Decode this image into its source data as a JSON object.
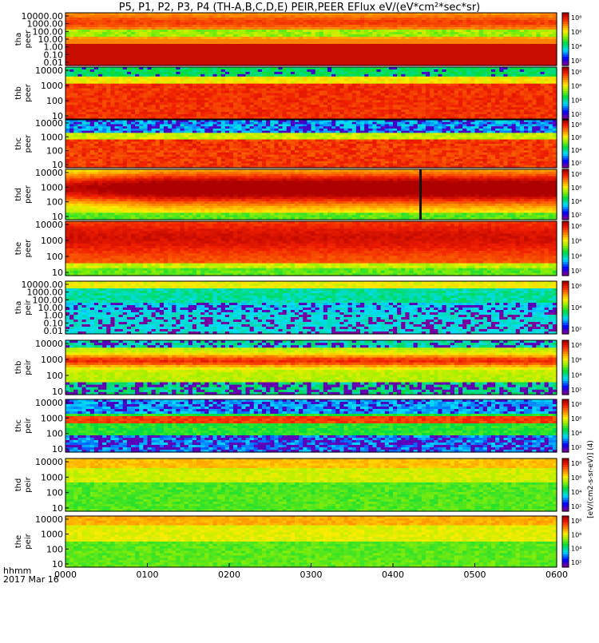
{
  "title": "P5, P1, P2, P3, P4 (TH-A,B,C,D,E) PEIR,PEER EFlux eV/(eV*cm²*sec*sr)",
  "footer": {
    "time_label": "hhmm",
    "date_label": "2017 Mar 16"
  },
  "chart_data": {
    "type": "heatmap",
    "x_axis": {
      "ticks": [
        "0000",
        "0100",
        "0200",
        "0300",
        "0400",
        "0500",
        "0600"
      ]
    },
    "colorbar_label": "[eV/(cm2-s-sr-eV)] (4)",
    "panels": [
      {
        "ylabel": [
          "tha",
          "peer"
        ],
        "yticks": [
          "10000.00",
          "1000.00",
          "100.00",
          "10.00",
          "1.00",
          "0.10",
          "0.01"
        ],
        "cbticks": [
          "10⁸",
          "10⁶",
          "10⁴",
          "10²"
        ],
        "pattern": "tha_peer"
      },
      {
        "ylabel": [
          "thb",
          "peer"
        ],
        "yticks": [
          "10000",
          "1000",
          "100",
          "10"
        ],
        "cbticks": [
          "10⁸",
          "10⁶",
          "10⁴",
          "10²"
        ],
        "pattern": "peer_std"
      },
      {
        "ylabel": [
          "thc",
          "peer"
        ],
        "yticks": [
          "10000",
          "1000",
          "100",
          "10"
        ],
        "cbticks": [
          "10⁸",
          "10⁶",
          "10⁴",
          "10²"
        ],
        "pattern": "thc_peer"
      },
      {
        "ylabel": [
          "thd",
          "peer"
        ],
        "yticks": [
          "10000",
          "1000",
          "100",
          "10"
        ],
        "cbticks": [
          "10⁸",
          "10⁶",
          "10⁴",
          "10²"
        ],
        "pattern": "thd_peer"
      },
      {
        "ylabel": [
          "the",
          "peer"
        ],
        "yticks": [
          "10000",
          "1000",
          "100",
          "10"
        ],
        "cbticks": [
          "10⁸",
          "10⁶",
          "10⁴",
          "10²"
        ],
        "pattern": "the_peer"
      },
      {
        "ylabel": [
          "tha",
          "peir"
        ],
        "yticks": [
          "10000.00",
          "1000.00",
          "100.00",
          "10.00",
          "1.00",
          "0.10",
          "0.01"
        ],
        "cbticks": [
          "10⁶",
          "10⁴",
          "10²"
        ],
        "pattern": "tha_peir"
      },
      {
        "ylabel": [
          "thb",
          "peir"
        ],
        "yticks": [
          "10000",
          "1000",
          "100",
          "10"
        ],
        "cbticks": [
          "10⁸",
          "10⁶",
          "10⁴",
          "10²"
        ],
        "pattern": "thb_peir"
      },
      {
        "ylabel": [
          "thc",
          "peir"
        ],
        "yticks": [
          "10000",
          "1000",
          "100",
          "10"
        ],
        "cbticks": [
          "10⁸",
          "10⁶",
          "10⁴",
          "10²"
        ],
        "pattern": "thc_peir"
      },
      {
        "ylabel": [
          "thd",
          "peir"
        ],
        "yticks": [
          "10000",
          "1000",
          "100",
          "10"
        ],
        "cbticks": [
          "10⁸",
          "10⁶",
          "10⁴",
          "10²"
        ],
        "pattern": "thd_peir"
      },
      {
        "ylabel": [
          "the",
          "peir"
        ],
        "yticks": [
          "10000",
          "1000",
          "100",
          "10"
        ],
        "cbticks": [
          "10⁸",
          "10⁶",
          "10⁴",
          "10²"
        ],
        "pattern": "the_peir"
      }
    ]
  }
}
